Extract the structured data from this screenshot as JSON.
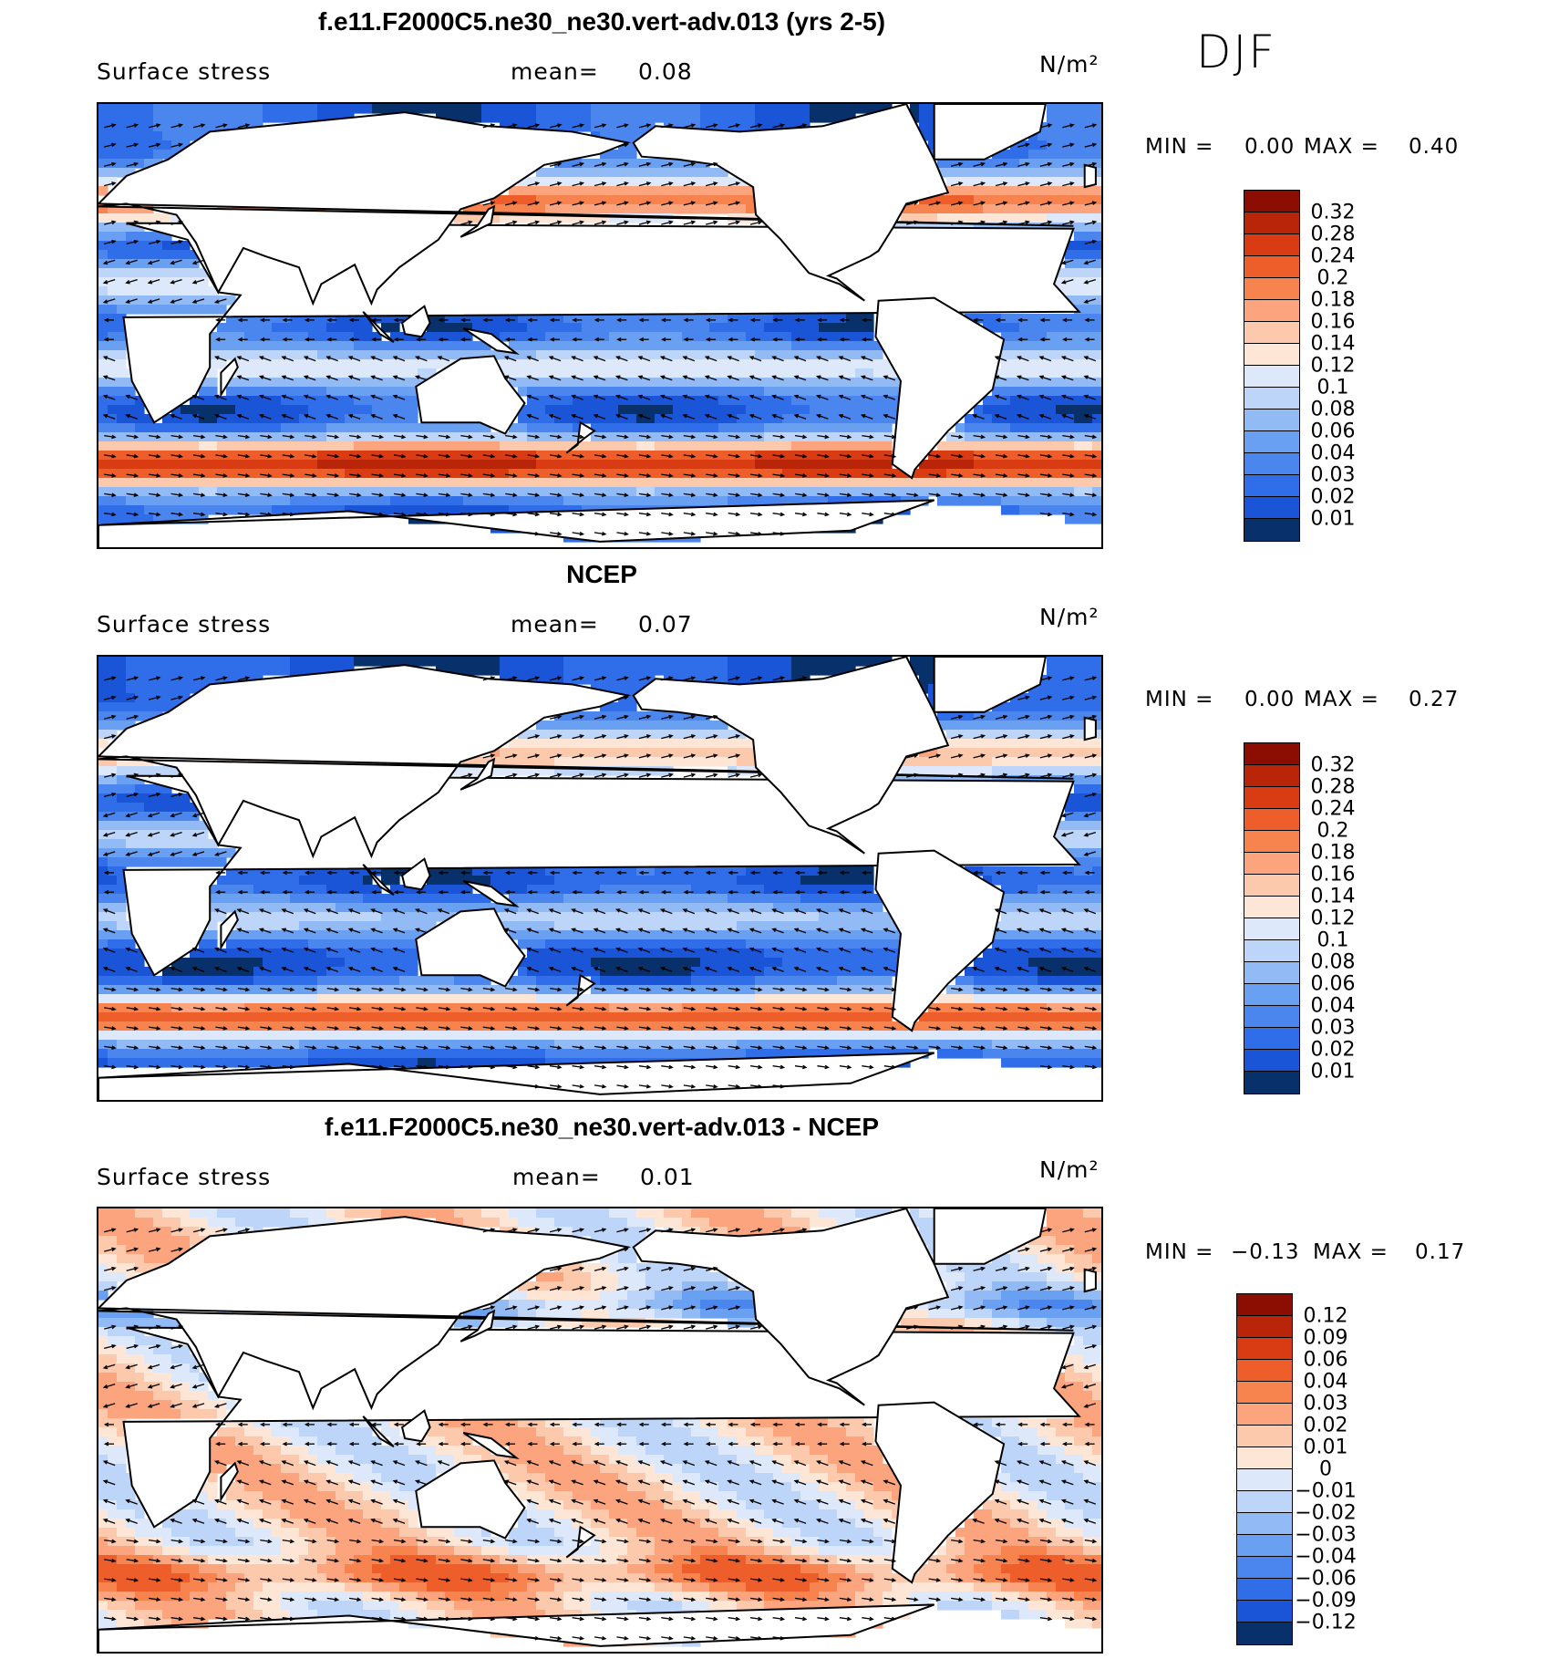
{
  "season": "DJF",
  "palette_main": [
    "#08306b",
    "#0d3fb5",
    "#1a55d8",
    "#2f6ee8",
    "#4a86ee",
    "#6aa0f2",
    "#92bbf5",
    "#bcd5f8",
    "#dde9fb",
    "#fde6d6",
    "#fcc9ad",
    "#fba47d",
    "#f7834f",
    "#ee5e2a",
    "#d93b12",
    "#b82508",
    "#8c0e02"
  ],
  "panels": [
    {
      "id": "model",
      "title": "f.e11.F2000C5.ne30_ne30.vert-adv.013 (yrs 2-5)",
      "variable": "Surface stress",
      "mean_label": "mean=",
      "mean_value": "0.08",
      "units": "N/m²",
      "min_label": "MIN =",
      "min_value": "0.00",
      "max_label": "MAX =",
      "max_value": "0.40",
      "colorbar_ticks": [
        "0.32",
        "0.28",
        "0.24",
        "0.2",
        "0.18",
        "0.16",
        "0.14",
        "0.12",
        "0.1",
        "0.08",
        "0.06",
        "0.04",
        "0.03",
        "0.02",
        "0.01"
      ],
      "colorbar_colors": [
        "#8c0e02",
        "#b82508",
        "#d93b12",
        "#ee5e2a",
        "#f7834f",
        "#fba47d",
        "#fcc9ad",
        "#fde6d6",
        "#dde9fb",
        "#bcd5f8",
        "#92bbf5",
        "#6aa0f2",
        "#4a86ee",
        "#2f6ee8",
        "#1a55d8",
        "#08306b"
      ]
    },
    {
      "id": "obs",
      "title": "NCEP",
      "variable": "Surface stress",
      "mean_label": "mean=",
      "mean_value": "0.07",
      "units": "N/m²",
      "min_label": "MIN =",
      "min_value": "0.00",
      "max_label": "MAX =",
      "max_value": "0.27",
      "colorbar_ticks": [
        "0.32",
        "0.28",
        "0.24",
        "0.2",
        "0.18",
        "0.16",
        "0.14",
        "0.12",
        "0.1",
        "0.08",
        "0.06",
        "0.04",
        "0.03",
        "0.02",
        "0.01"
      ],
      "colorbar_colors": [
        "#8c0e02",
        "#b82508",
        "#d93b12",
        "#ee5e2a",
        "#f7834f",
        "#fba47d",
        "#fcc9ad",
        "#fde6d6",
        "#dde9fb",
        "#bcd5f8",
        "#92bbf5",
        "#6aa0f2",
        "#4a86ee",
        "#2f6ee8",
        "#1a55d8",
        "#08306b"
      ]
    },
    {
      "id": "diff",
      "title": "f.e11.F2000C5.ne30_ne30.vert-adv.013 - NCEP",
      "variable": "Surface stress",
      "mean_label": "mean=",
      "mean_value": "0.01",
      "units": "N/m²",
      "min_label": "MIN =",
      "min_value": "−0.13",
      "max_label": "MAX =",
      "max_value": "0.17",
      "colorbar_ticks": [
        "0.12",
        "0.09",
        "0.06",
        "0.04",
        "0.03",
        "0.02",
        "0.01",
        "0",
        "−0.01",
        "−0.02",
        "−0.03",
        "−0.04",
        "−0.06",
        "−0.09",
        "−0.12"
      ],
      "colorbar_colors": [
        "#8c0e02",
        "#b82508",
        "#d93b12",
        "#ee5e2a",
        "#f7834f",
        "#fba47d",
        "#fcc9ad",
        "#fde6d6",
        "#dde9fb",
        "#bcd5f8",
        "#92bbf5",
        "#6aa0f2",
        "#4a86ee",
        "#2f6ee8",
        "#1a55d8",
        "#08306b"
      ]
    }
  ],
  "chart_data": {
    "type": "heatmap",
    "title": "DJF",
    "xlabel": "",
    "ylabel": "",
    "fields": [
      {
        "name": "f.e11.F2000C5.ne30_ne30.vert-adv.013 (yrs 2-5)",
        "variable": "Surface stress",
        "units": "N/m²",
        "mean": 0.08,
        "min": 0.0,
        "max": 0.4,
        "levels": [
          0.01,
          0.02,
          0.03,
          0.04,
          0.06,
          0.08,
          0.1,
          0.12,
          0.14,
          0.16,
          0.18,
          0.2,
          0.24,
          0.28,
          0.32
        ]
      },
      {
        "name": "NCEP",
        "variable": "Surface stress",
        "units": "N/m²",
        "mean": 0.07,
        "min": 0.0,
        "max": 0.27,
        "levels": [
          0.01,
          0.02,
          0.03,
          0.04,
          0.06,
          0.08,
          0.1,
          0.12,
          0.14,
          0.16,
          0.18,
          0.2,
          0.24,
          0.28,
          0.32
        ]
      },
      {
        "name": "f.e11.F2000C5.ne30_ne30.vert-adv.013 - NCEP",
        "variable": "Surface stress",
        "units": "N/m²",
        "mean": 0.01,
        "min": -0.13,
        "max": 0.17,
        "levels": [
          -0.12,
          -0.09,
          -0.06,
          -0.04,
          -0.03,
          -0.02,
          -0.01,
          0,
          0.01,
          0.02,
          0.03,
          0.04,
          0.06,
          0.09,
          0.12
        ]
      }
    ]
  }
}
